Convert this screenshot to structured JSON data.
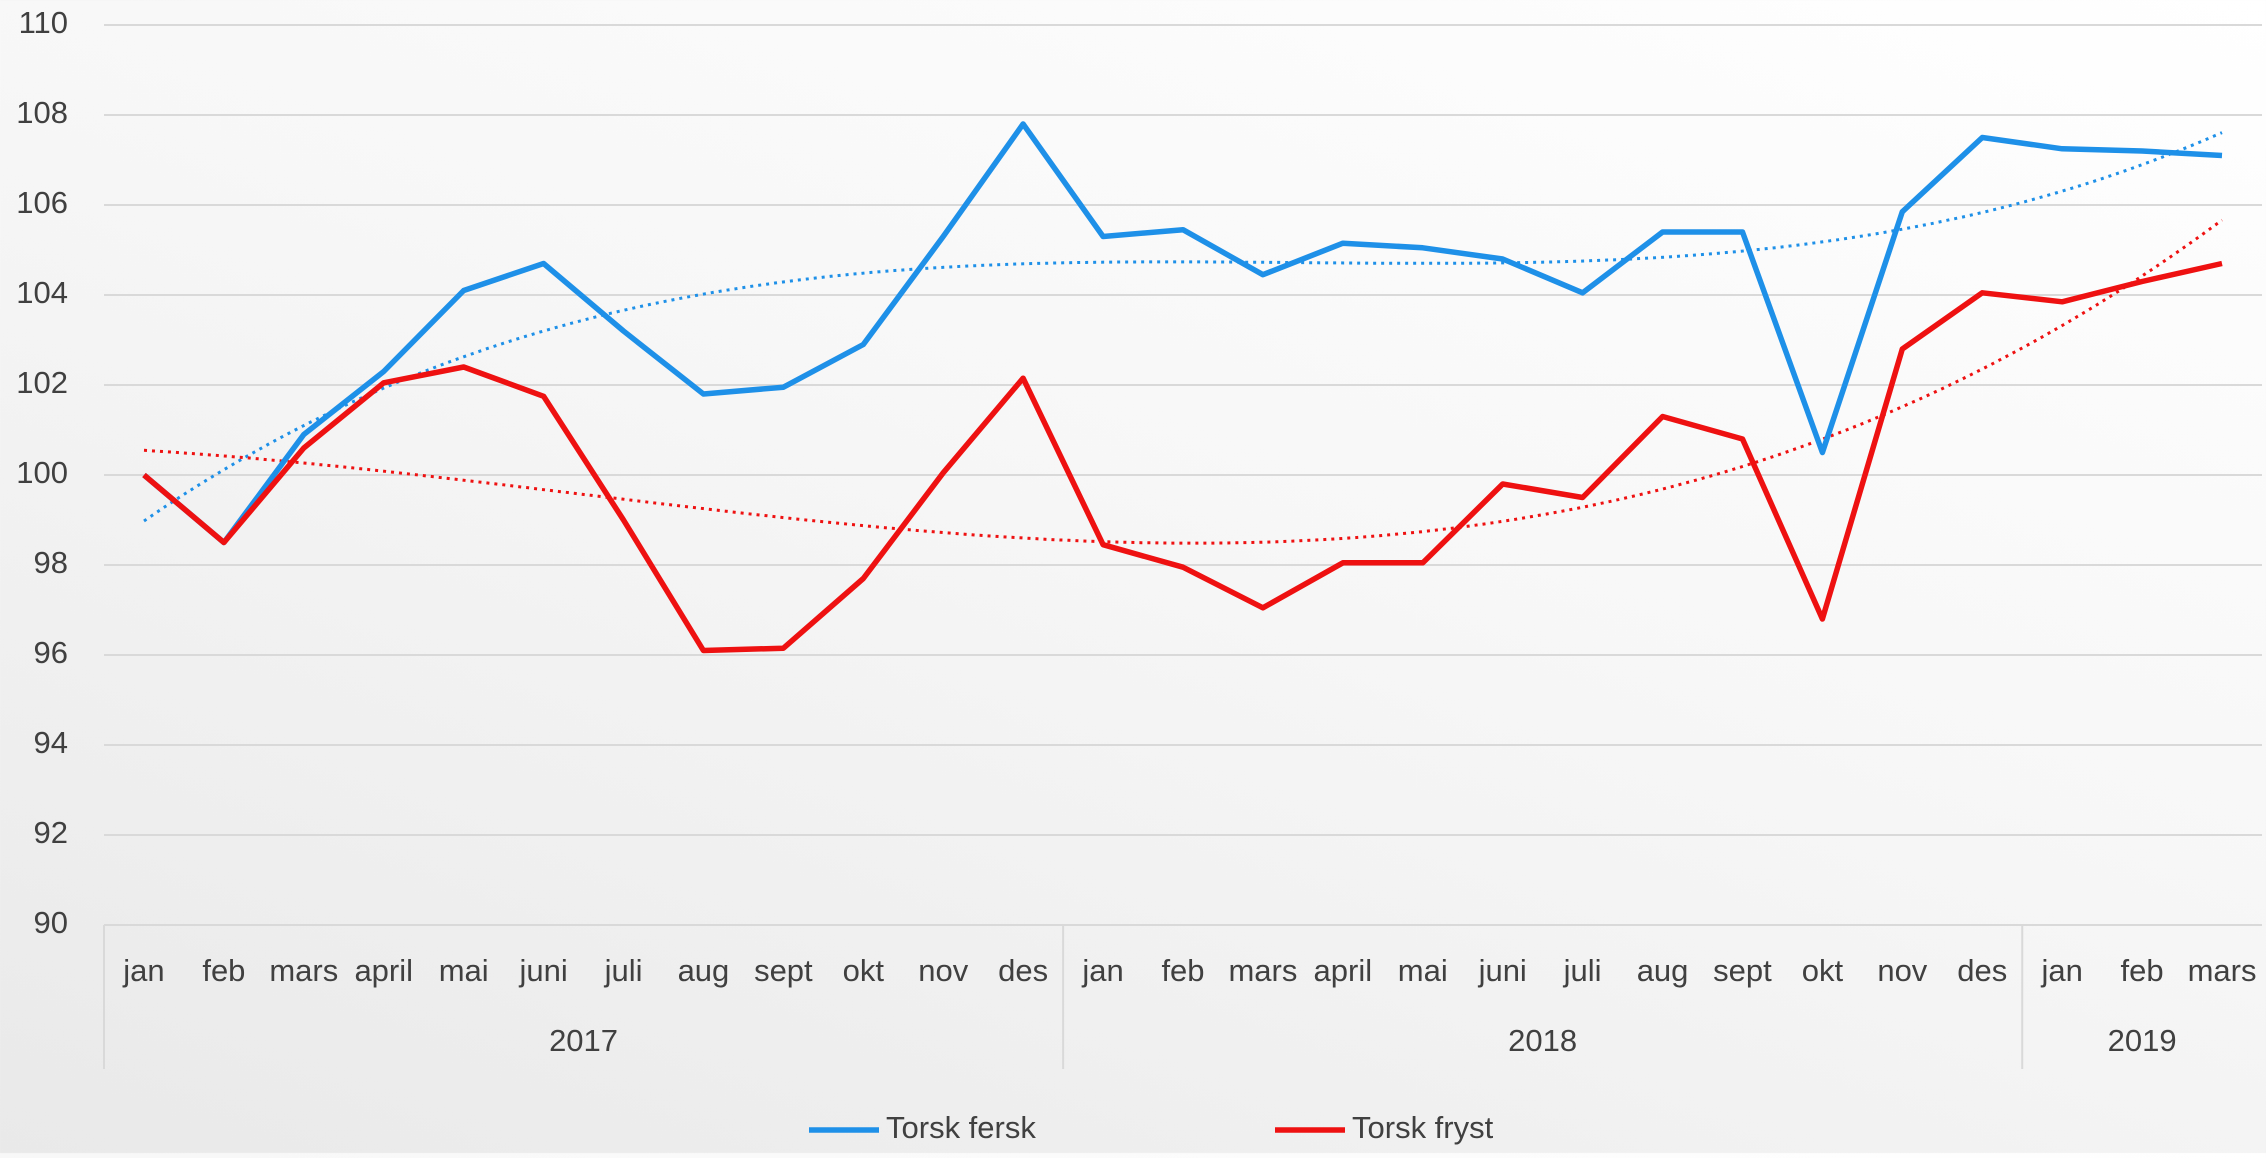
{
  "chart_data": {
    "type": "line",
    "categories": [
      "jan",
      "feb",
      "mars",
      "april",
      "mai",
      "juni",
      "juli",
      "aug",
      "sept",
      "okt",
      "nov",
      "des",
      "jan",
      "feb",
      "mars",
      "april",
      "mai",
      "juni",
      "juli",
      "aug",
      "sept",
      "okt",
      "nov",
      "des",
      "jan",
      "feb",
      "mars"
    ],
    "groups": [
      {
        "label": "2017",
        "count": 12
      },
      {
        "label": "2018",
        "count": 12
      },
      {
        "label": "2019",
        "count": 3
      }
    ],
    "series": [
      {
        "name": "Torsk fersk",
        "color": "#1e90e8",
        "trendline_order": 3,
        "values": [
          100,
          98.5,
          100.9,
          102.3,
          104.1,
          104.7,
          103.2,
          101.8,
          101.95,
          102.9,
          105.3,
          107.8,
          105.3,
          105.45,
          104.45,
          105.15,
          105.05,
          104.8,
          104.05,
          105.4,
          105.4,
          100.5,
          105.85,
          107.5,
          107.25,
          107.2,
          107.1
        ]
      },
      {
        "name": "Torsk fryst",
        "color": "#ee1111",
        "trendline_order": 3,
        "values": [
          100,
          98.5,
          100.6,
          102.05,
          102.4,
          101.75,
          99,
          96.1,
          96.15,
          97.7,
          100.05,
          102.15,
          98.45,
          97.95,
          97.05,
          98.05,
          98.05,
          99.8,
          99.5,
          101.3,
          100.8,
          96.8,
          102.8,
          104.05,
          103.85,
          104.3,
          104.7
        ]
      }
    ],
    "ylim": [
      90,
      110
    ],
    "yticks": [
      90,
      92,
      94,
      96,
      98,
      100,
      102,
      104,
      106,
      108,
      110
    ],
    "grid": true,
    "legend": "bottom"
  }
}
